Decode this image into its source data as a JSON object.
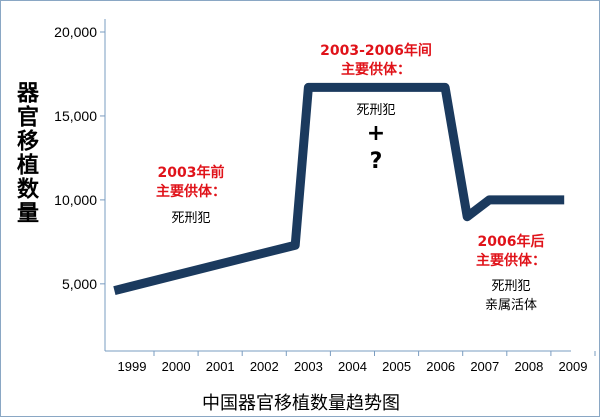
{
  "chart_data": {
    "type": "line",
    "title": "中国器官移植数量趋势图",
    "ylabel": "器官移植数量",
    "xlabel": "",
    "x_ticks": [
      "1999",
      "2000",
      "2001",
      "2002",
      "2003",
      "2004",
      "2005",
      "2006",
      "2007",
      "2008",
      "2009"
    ],
    "y_ticks": [
      "5,000",
      "10,000",
      "15,000",
      "20,000"
    ],
    "xlim": [
      1998.6,
      2009
    ],
    "ylim": [
      1000,
      21000
    ],
    "series": [
      {
        "x": [
          1998.6,
          2002.7,
          2003.0,
          2006.1,
          2006.6,
          2007.1,
          2008.8
        ],
        "y": [
          4600,
          7300,
          16700,
          16700,
          9000,
          10000,
          10000
        ]
      }
    ],
    "color": "#1b3a5e",
    "annotations": {
      "a1_title": "2003年前",
      "a1_sub": "主要供体：",
      "a1_body": "死刑犯",
      "a2_title": "2003-2006年间",
      "a2_sub": "主要供体：",
      "a2_body": "死刑犯",
      "a2_plus": "+",
      "a2_q": "?",
      "a3_title": "2006年后",
      "a3_sub": "主要供体：",
      "a3_body1": "死刑犯",
      "a3_body2": "亲属活体"
    }
  }
}
